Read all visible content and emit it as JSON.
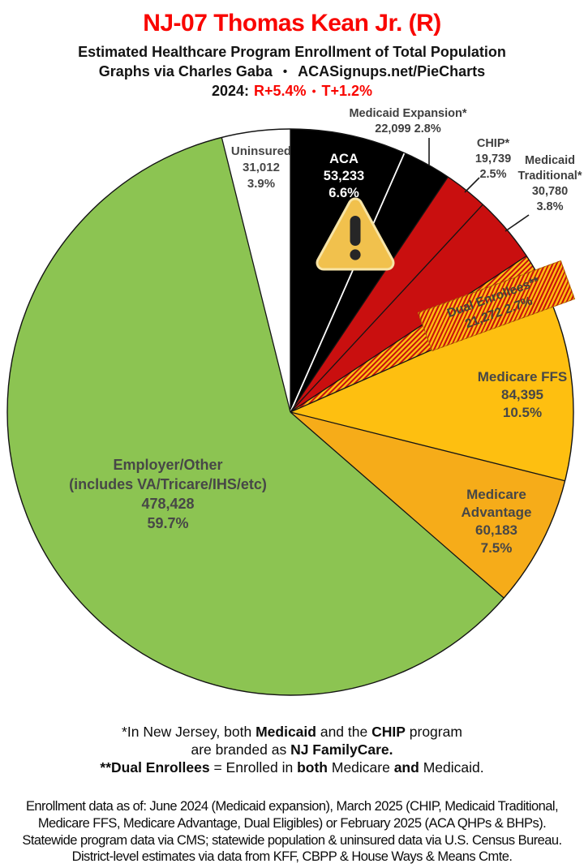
{
  "header": {
    "title": "NJ-07 Thomas Kean Jr. (R)",
    "subtitle": "Estimated Healthcare Program Enrollment of Total Population",
    "byline_left": "Graphs via Charles Gaba",
    "byline_bullet": "•",
    "byline_right": "ACASignups.net/PieCharts",
    "partisan": {
      "year_label": "2024:",
      "r_value": "R+5.4%",
      "bullet": "•",
      "t_value": "T+1.2%"
    }
  },
  "colors": {
    "title_red": "#F90500",
    "deep_red": "#C90F0F",
    "gold": "#FEBF10",
    "amber": "#F6AC19",
    "green": "#8CC452",
    "black": "#000000",
    "white": "#FFFFFF",
    "label_gray": "#474747",
    "highlight_orange": "#E2711D"
  },
  "chart_data": {
    "type": "pie",
    "title": "Estimated Healthcare Program Enrollment of Total Population",
    "start_angle_deg": 0,
    "direction": "clockwise",
    "white_divider_before_slice": "Medicaid Expansion*",
    "slices": [
      {
        "name": "ACA",
        "value": 53233,
        "value_text": "53,233",
        "pct": 6.6,
        "pct_text": "6.6%",
        "color": "#000000",
        "label_color": "#FFFFFF"
      },
      {
        "name": "Medicaid Expansion*",
        "value": 22099,
        "value_text": "22,099",
        "pct": 2.8,
        "pct_text": "2.8%",
        "color": "#000000",
        "label_color": "#3F3F3F"
      },
      {
        "name": "CHIP*",
        "value": 19739,
        "value_text": "19,739",
        "pct": 2.5,
        "pct_text": "2.5%",
        "color": "#C90F0F",
        "label_color": "#3F3F3F"
      },
      {
        "name": "Medicaid Traditional*",
        "value": 30780,
        "value_text": "30,780",
        "pct": 3.8,
        "pct_text": "3.8%",
        "color": "#C90F0F",
        "label_color": "#3F3F3F"
      },
      {
        "name": "Dual Enrollees**",
        "value": 21272,
        "value_text": "21,272",
        "pct": 2.7,
        "pct_text": "2.7%",
        "color": "pattern:hatch",
        "label_color": "#44443B"
      },
      {
        "name": "Medicare FFS",
        "value": 84395,
        "value_text": "84,395",
        "pct": 10.5,
        "pct_text": "10.5%",
        "color": "#FEBF10",
        "label_color": "#474747"
      },
      {
        "name": "Medicare Advantage",
        "value": 60183,
        "value_text": "60,183",
        "pct": 7.5,
        "pct_text": "7.5%",
        "color": "#F6AC19",
        "label_color": "#474747"
      },
      {
        "name": "Employer/Other",
        "name2": "(includes VA/Tricare/IHS/etc)",
        "value": 478428,
        "value_text": "478,428",
        "pct": 59.7,
        "pct_text": "59.7%",
        "color": "#8CC452",
        "label_color": "#474747"
      },
      {
        "name": "Uninsured",
        "value": 31012,
        "value_text": "31,012",
        "pct": 3.9,
        "pct_text": "3.9%",
        "color": "#FFFFFF",
        "label_color": "#474747"
      }
    ]
  },
  "icons": {
    "warning": "warning-triangle-icon"
  },
  "footnotes": {
    "line1": {
      "p0": "*In New Jersey, both ",
      "b0": "Medicaid",
      "p1": " and the ",
      "b1": "CHIP",
      "p2": " program"
    },
    "line2": {
      "p0": "are branded as ",
      "b0": "NJ FamilyCare."
    },
    "line3": {
      "b0": "**Dual Enrollees",
      "p0": " = Enrolled in ",
      "b1": "both",
      "p1": " Medicare ",
      "b2": "and",
      "p2": " Medicaid."
    }
  },
  "sources": {
    "line1": "Enrollment data as of: June 2024 (Medicaid expansion), March 2025 (CHIP, Medicaid Traditional,",
    "line2": "Medicare FFS, Medicare Advantage, Dual Eligibles) or February 2025 (ACA QHPs & BHPs).",
    "line3": "Statewide program data via CMS; statewide population & uninsured data via U.S. Census Bureau.",
    "line4": "District-level estimates via data from KFF, CBPP & House Ways & Means Cmte."
  }
}
